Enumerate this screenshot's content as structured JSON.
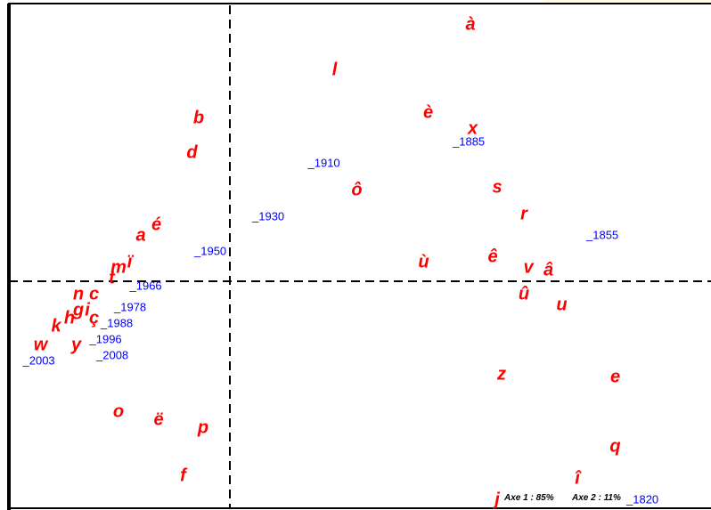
{
  "chart_data": {
    "type": "scatter",
    "title": "",
    "xlabel": "",
    "ylabel": "",
    "xlim": [
      -1,
      2.1
    ],
    "ylim": [
      -1,
      1
    ],
    "grid": false,
    "colors": {
      "letters": "#ff0000",
      "years": "#0000ff",
      "axes": "#000000"
    },
    "annotation": {
      "axe1": "Axe 1 : 85%",
      "axe2": "Axe 2 : 11%"
    },
    "series": [
      {
        "kind": "letters",
        "points": [
          {
            "label": "à",
            "x": 1.08,
            "y": 0.96
          },
          {
            "label": "l",
            "x": 0.47,
            "y": 0.79
          },
          {
            "label": "è",
            "x": 0.89,
            "y": 0.63
          },
          {
            "label": "x",
            "x": 1.09,
            "y": 0.57
          },
          {
            "label": "b",
            "x": -0.14,
            "y": 0.61
          },
          {
            "label": "d",
            "x": -0.17,
            "y": 0.48
          },
          {
            "label": "ô",
            "x": 0.57,
            "y": 0.34
          },
          {
            "label": "s",
            "x": 1.2,
            "y": 0.35
          },
          {
            "label": "r",
            "x": 1.32,
            "y": 0.25
          },
          {
            "label": "é",
            "x": -0.33,
            "y": 0.21
          },
          {
            "label": "a",
            "x": -0.4,
            "y": 0.17
          },
          {
            "label": "ù",
            "x": 0.87,
            "y": 0.07
          },
          {
            "label": "ê",
            "x": 1.18,
            "y": 0.09
          },
          {
            "label": "v",
            "x": 1.34,
            "y": 0.05
          },
          {
            "label": "â",
            "x": 1.43,
            "y": 0.04
          },
          {
            "label": "m",
            "x": -0.5,
            "y": 0.05
          },
          {
            "label": "ï",
            "x": -0.45,
            "y": 0.07
          },
          {
            "label": "t",
            "x": -0.53,
            "y": 0.01
          },
          {
            "label": "û",
            "x": 1.32,
            "y": -0.05
          },
          {
            "label": "u",
            "x": 1.49,
            "y": -0.09
          },
          {
            "label": "n",
            "x": -0.68,
            "y": -0.05
          },
          {
            "label": "c",
            "x": -0.61,
            "y": -0.05
          },
          {
            "label": "g",
            "x": -0.68,
            "y": -0.11
          },
          {
            "label": "i",
            "x": -0.64,
            "y": -0.11
          },
          {
            "label": "ç",
            "x": -0.61,
            "y": -0.14
          },
          {
            "label": "h",
            "x": -0.72,
            "y": -0.14
          },
          {
            "label": "k",
            "x": -0.78,
            "y": -0.17
          },
          {
            "label": "y",
            "x": -0.69,
            "y": -0.24
          },
          {
            "label": "w",
            "x": -0.85,
            "y": -0.24
          },
          {
            "label": "z",
            "x": 1.22,
            "y": -0.35
          },
          {
            "label": "e",
            "x": 1.73,
            "y": -0.36
          },
          {
            "label": "o",
            "x": -0.5,
            "y": -0.49
          },
          {
            "label": "ë",
            "x": -0.32,
            "y": -0.52
          },
          {
            "label": "p",
            "x": -0.12,
            "y": -0.55
          },
          {
            "label": "f",
            "x": -0.21,
            "y": -0.73
          },
          {
            "label": "q",
            "x": 1.73,
            "y": -0.62
          },
          {
            "label": "î",
            "x": 1.56,
            "y": -0.74
          },
          {
            "label": "j",
            "x": 1.2,
            "y": -0.82
          }
        ]
      },
      {
        "kind": "years",
        "points": [
          {
            "label": "_1885",
            "x": 1.0,
            "y": 0.52
          },
          {
            "label": "_1910",
            "x": 0.35,
            "y": 0.44
          },
          {
            "label": "_1930",
            "x": 0.1,
            "y": 0.24
          },
          {
            "label": "_1855",
            "x": 1.6,
            "y": 0.17
          },
          {
            "label": "_1950",
            "x": -0.16,
            "y": 0.11
          },
          {
            "label": "_1966",
            "x": -0.45,
            "y": -0.02
          },
          {
            "label": "_1978",
            "x": -0.52,
            "y": -0.1
          },
          {
            "label": "_1988",
            "x": -0.58,
            "y": -0.16
          },
          {
            "label": "_1996",
            "x": -0.63,
            "y": -0.22
          },
          {
            "label": "_2008",
            "x": -0.6,
            "y": -0.28
          },
          {
            "label": "_2003",
            "x": -0.93,
            "y": -0.3
          },
          {
            "label": "_1820",
            "x": 1.78,
            "y": -0.82
          }
        ]
      }
    ]
  }
}
